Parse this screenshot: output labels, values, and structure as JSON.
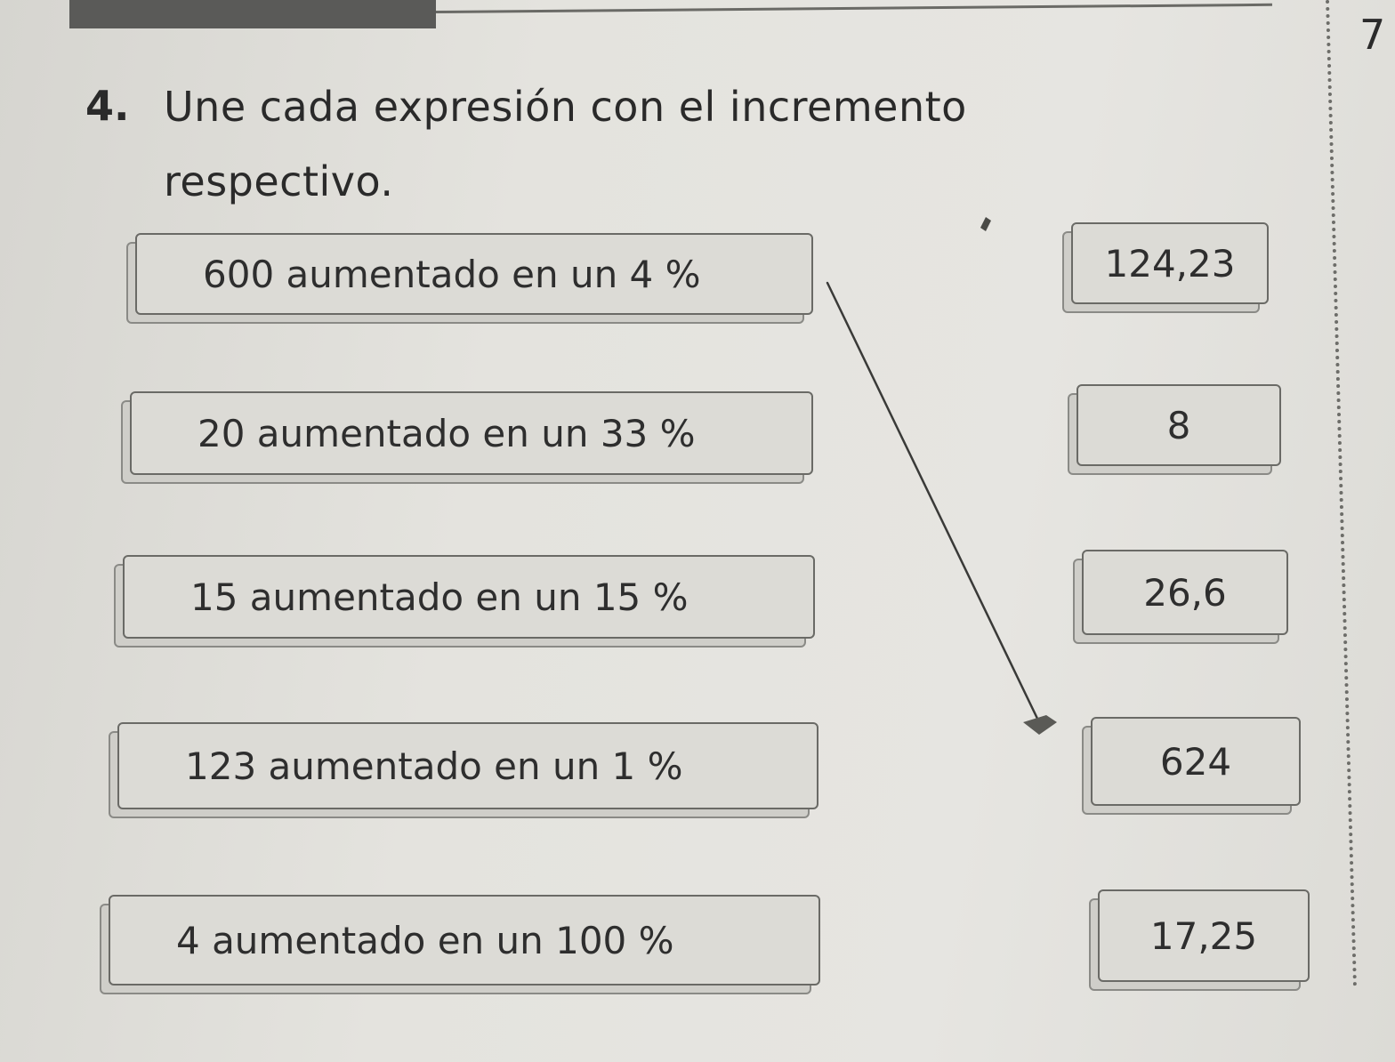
{
  "page_number": "7",
  "exercise": {
    "number": "4.",
    "line1": "Une cada expresión con el incremento",
    "line2": "respectivo."
  },
  "expressions": [
    "600 aumentado en un 4 %",
    "20 aumentado en un 33 %",
    "15 aumentado en un 15 %",
    "123 aumentado en un 1 %",
    "4 aumentado en un 100 %"
  ],
  "results": [
    "124,23",
    "8",
    "26,6",
    "624",
    "17,25"
  ],
  "drawn_connection": {
    "from_expression": "600 aumentado en un 4 %",
    "to_result": "624"
  }
}
